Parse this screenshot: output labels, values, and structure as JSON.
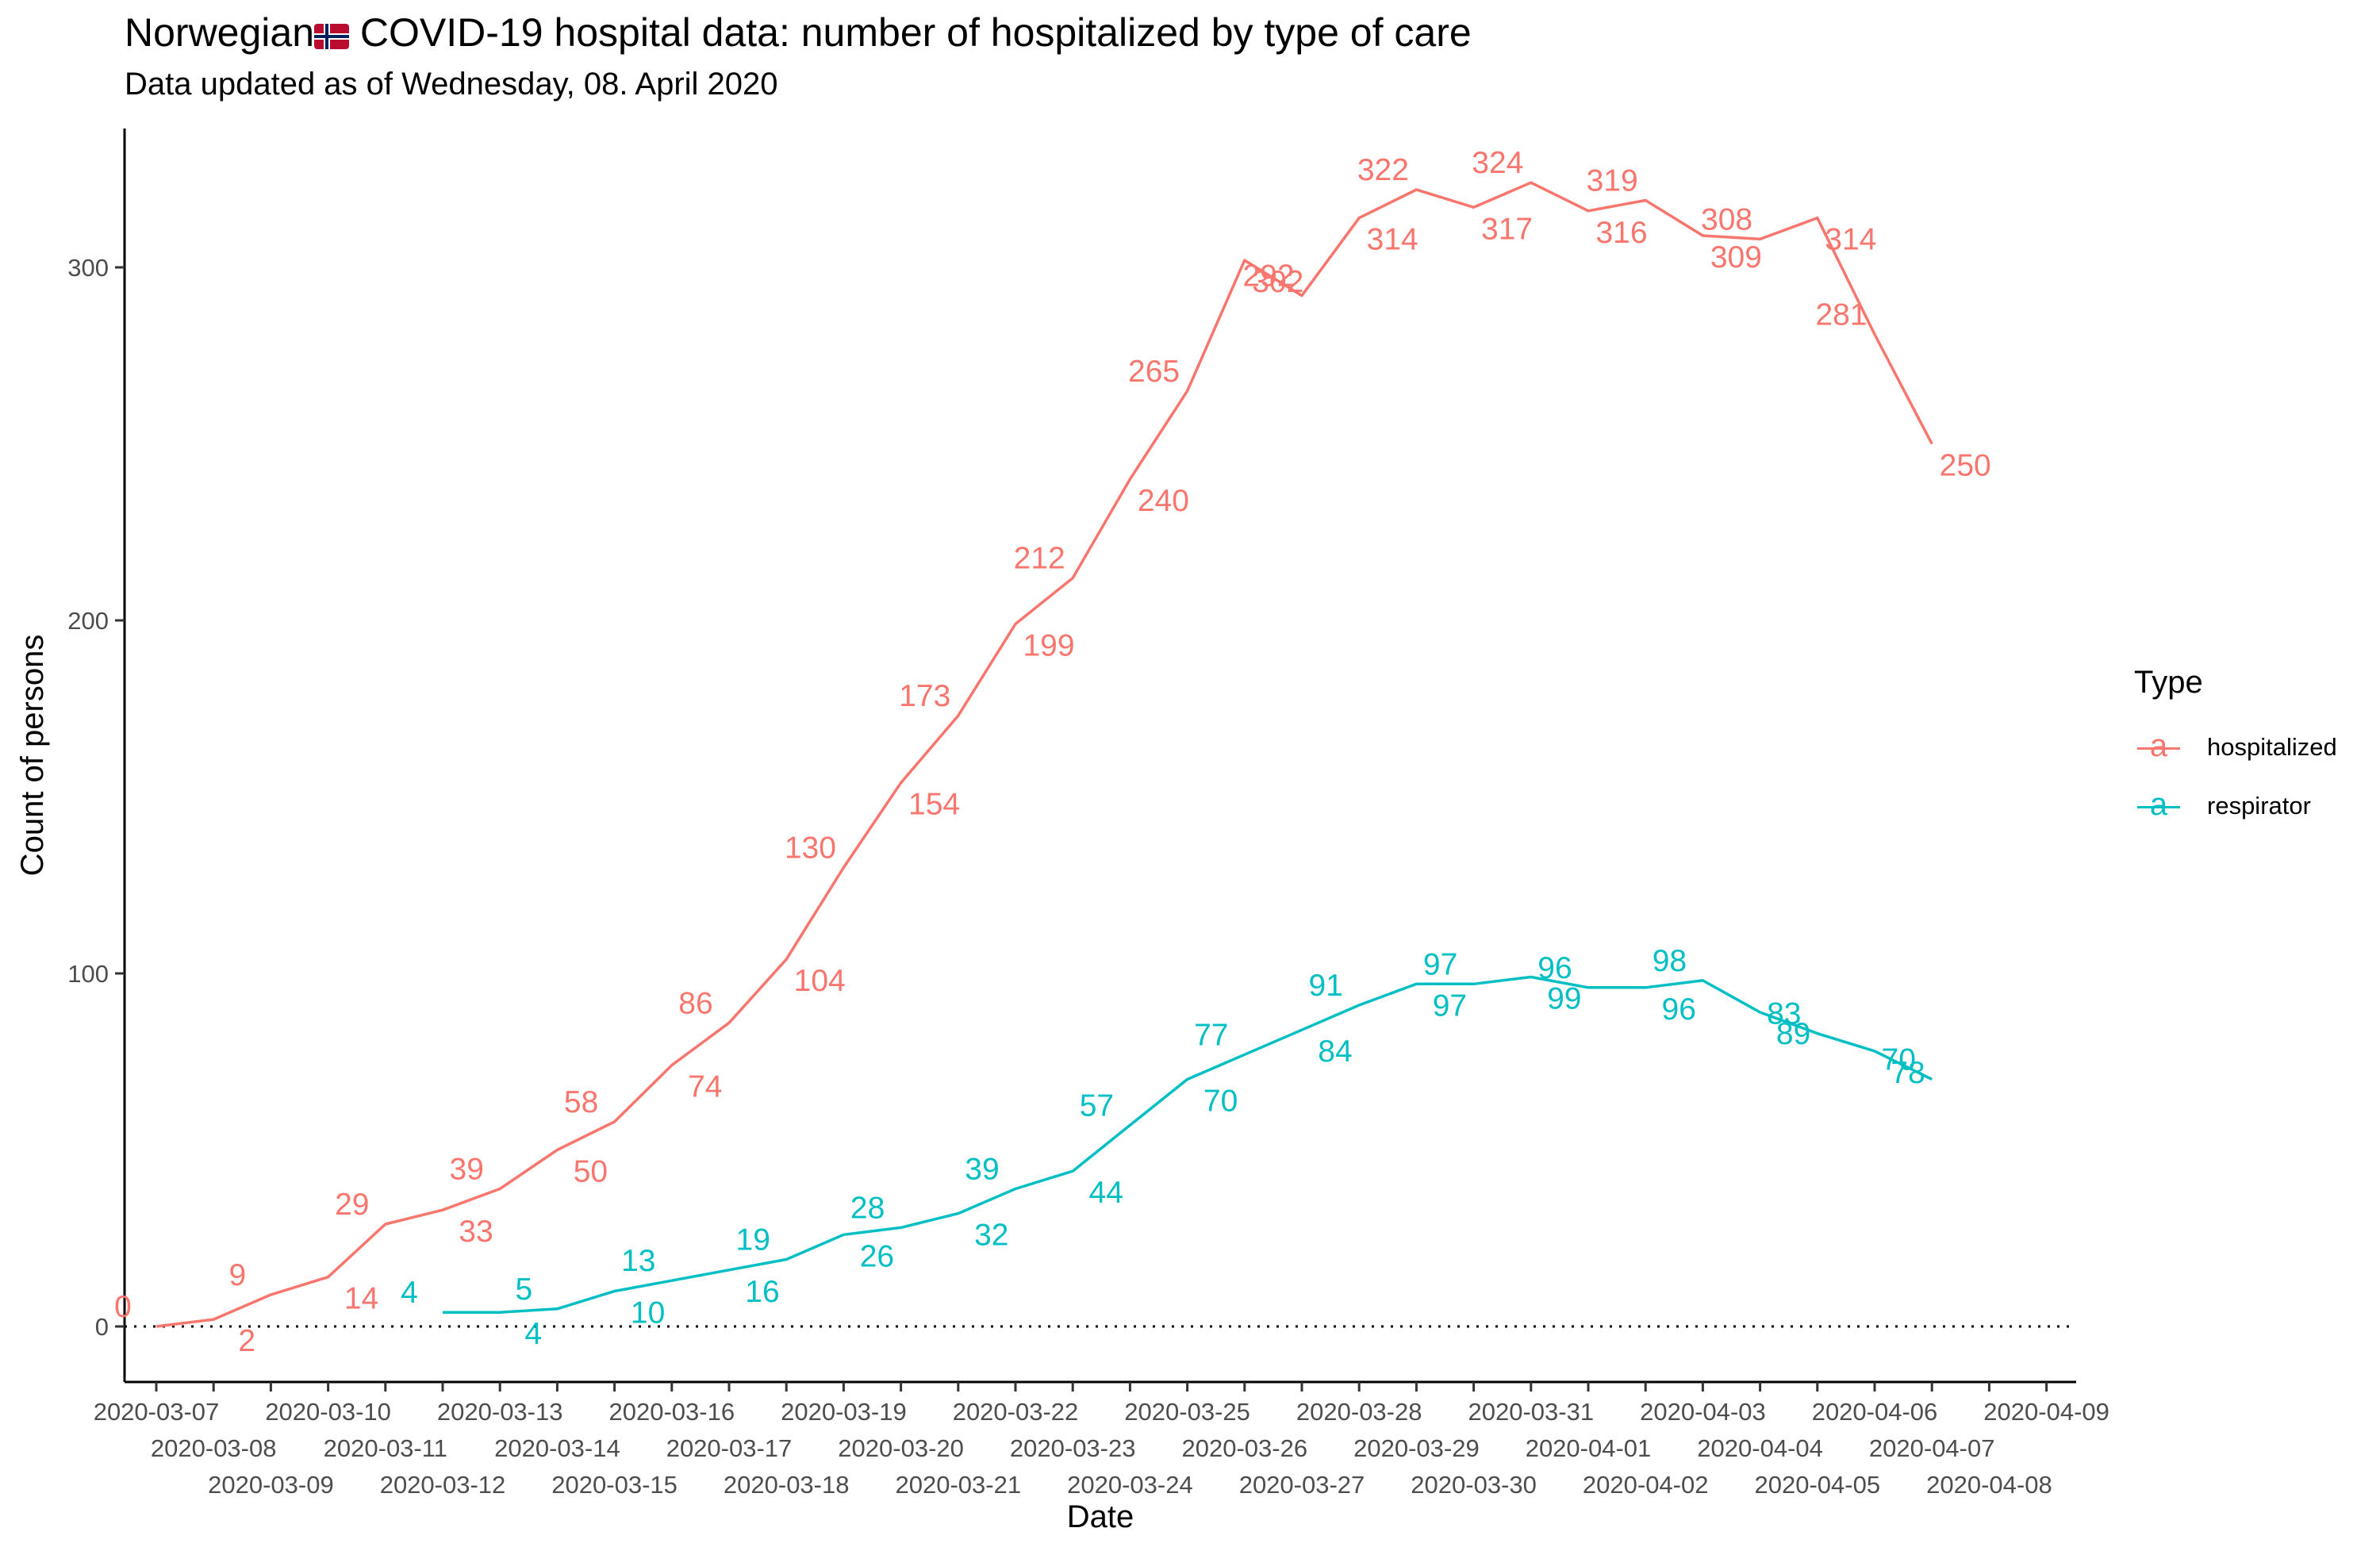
{
  "header": {
    "title_before_flag": "Norwegian",
    "title_after_flag": " COVID-19 hospital data: number of hospitalized by type of care",
    "subtitle": "Data updated as of Wednesday, 08. April 2020"
  },
  "legend": {
    "title": "Type",
    "items": [
      {
        "label": "hospitalized",
        "glyph": "a",
        "color": "#F8766D"
      },
      {
        "label": "respirator",
        "glyph": "a",
        "color": "#00BFC4"
      }
    ]
  },
  "chart_data": {
    "type": "line",
    "xlabel": "Date",
    "ylabel": "Count of persons",
    "ylim": [
      -15,
      338
    ],
    "yticks": [
      0,
      100,
      200,
      300
    ],
    "reference_line": {
      "y": 0,
      "style": "dotted"
    },
    "grid": false,
    "legend_position": "right",
    "x": [
      "2020-03-07",
      "2020-03-08",
      "2020-03-09",
      "2020-03-10",
      "2020-03-11",
      "2020-03-12",
      "2020-03-13",
      "2020-03-14",
      "2020-03-15",
      "2020-03-16",
      "2020-03-17",
      "2020-03-18",
      "2020-03-19",
      "2020-03-20",
      "2020-03-21",
      "2020-03-22",
      "2020-03-23",
      "2020-03-24",
      "2020-03-25",
      "2020-03-26",
      "2020-03-27",
      "2020-03-28",
      "2020-03-29",
      "2020-03-30",
      "2020-03-31",
      "2020-04-01",
      "2020-04-02",
      "2020-04-03",
      "2020-04-04",
      "2020-04-05",
      "2020-04-06",
      "2020-04-07",
      "2020-04-08",
      "2020-04-09"
    ],
    "series": [
      {
        "name": "hospitalized",
        "color": "#F8766D",
        "values": [
          0,
          2,
          9,
          14,
          29,
          33,
          39,
          50,
          58,
          74,
          86,
          104,
          130,
          154,
          173,
          199,
          212,
          240,
          265,
          302,
          292,
          314,
          322,
          317,
          324,
          316,
          319,
          309,
          308,
          314,
          281,
          250,
          null,
          null
        ]
      },
      {
        "name": "respirator",
        "color": "#00BFC4",
        "values": [
          null,
          null,
          null,
          null,
          null,
          4,
          4,
          5,
          10,
          13,
          16,
          19,
          26,
          28,
          32,
          39,
          44,
          57,
          70,
          77,
          84,
          91,
          97,
          97,
          99,
          96,
          96,
          98,
          89,
          83,
          78,
          70,
          null,
          null
        ]
      }
    ]
  }
}
